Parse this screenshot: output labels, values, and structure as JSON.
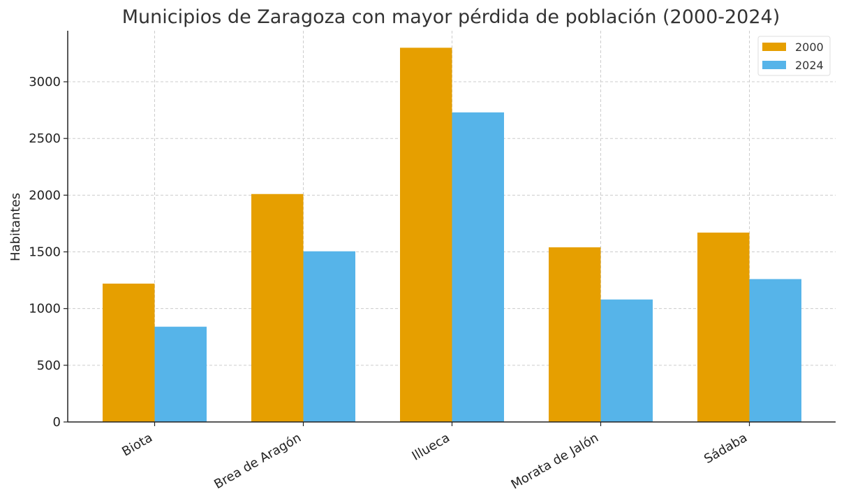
{
  "chart_data": {
    "type": "bar",
    "title": "Municipios de Zaragoza con mayor pérdida de población (2000-2024)",
    "xlabel": "",
    "ylabel": "Habitantes",
    "categories": [
      "Biota",
      "Brea de Aragón",
      "Illueca",
      "Morata de Jalón",
      "Sádaba"
    ],
    "series": [
      {
        "name": "2000",
        "color": "#E69F00",
        "values": [
          1220,
          2010,
          3300,
          1540,
          1670
        ]
      },
      {
        "name": "2024",
        "color": "#56B4E9",
        "values": [
          840,
          1505,
          2730,
          1080,
          1260
        ]
      }
    ],
    "ylim": [
      0,
      3450
    ],
    "yticks": [
      0,
      500,
      1000,
      1500,
      2000,
      2500,
      3000
    ],
    "grid": true,
    "legend_position": "top-right"
  }
}
